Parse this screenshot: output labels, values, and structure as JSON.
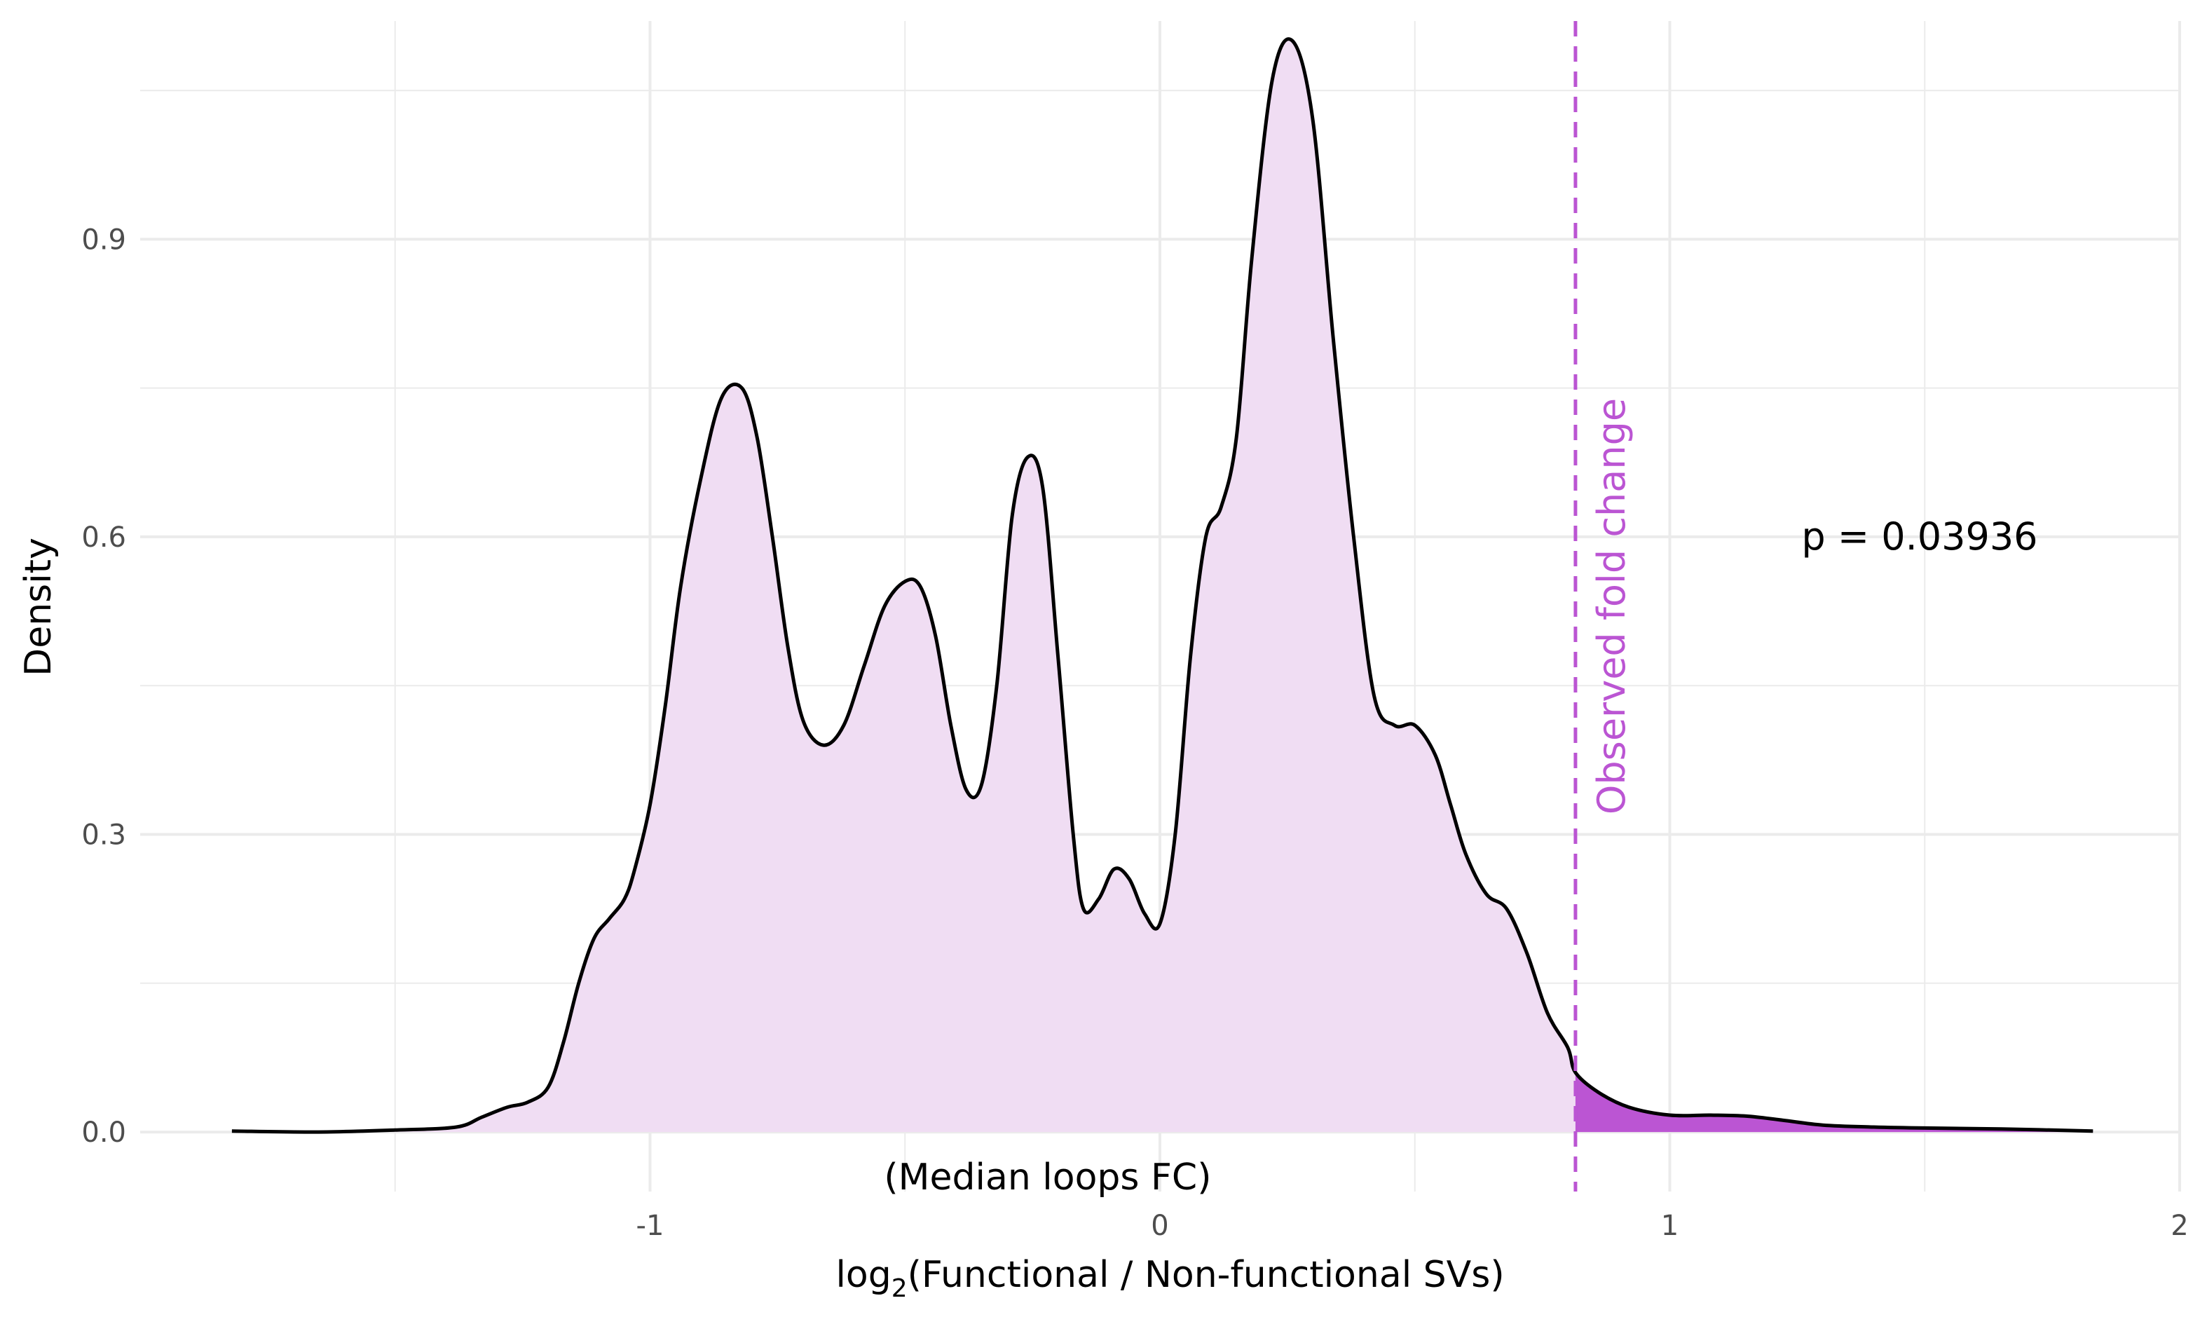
{
  "chart_data": {
    "type": "area",
    "xlabel": "log2(Functional / Non-functional SVs)",
    "xlabel_base": "log",
    "xlabel_sub": "2",
    "xlabel_rest": "(Functional / Non-functional SVs)",
    "ylabel": "Density",
    "subtitle_bottom": "(Median loops FC)",
    "x_ticks": [
      -1,
      0,
      1,
      2
    ],
    "x_tick_labels": [
      "-1",
      "0",
      "1",
      "2"
    ],
    "y_ticks": [
      0.0,
      0.3,
      0.6,
      0.9
    ],
    "y_tick_labels": [
      "0.0",
      "0.3",
      "0.6",
      "0.9"
    ],
    "xlim": [
      -2.0,
      2.0
    ],
    "ylim": [
      -0.06,
      1.12
    ],
    "grid": true,
    "observed_fold_change": 0.815,
    "observed_label": "Observed fold change",
    "p_value_label": "p = 0.03936",
    "colors": {
      "fill": "#f0ddf3",
      "tail_fill": "#bb55d3",
      "line": "#000000",
      "observed": "#bb55d3",
      "grid": "#ebebeb",
      "tick_text": "#4d4d4d"
    },
    "series": [
      {
        "x": [
          -1.82,
          -1.65,
          -1.5,
          -1.38,
          -1.33,
          -1.28,
          -1.24,
          -1.2,
          -1.17,
          -1.14,
          -1.11,
          -1.08,
          -1.05,
          -1.03,
          -1.0,
          -0.97,
          -0.94,
          -0.9,
          -0.86,
          -0.82,
          -0.79,
          -0.76,
          -0.73,
          -0.7,
          -0.66,
          -0.62,
          -0.58,
          -0.54,
          -0.5,
          -0.47,
          -0.44,
          -0.41,
          -0.38,
          -0.35,
          -0.32,
          -0.29,
          -0.26,
          -0.23,
          -0.2,
          -0.17,
          -0.15,
          -0.12,
          -0.09,
          -0.06,
          -0.03,
          0.0,
          0.03,
          0.06,
          0.09,
          0.12,
          0.15,
          0.18,
          0.22,
          0.26,
          0.3,
          0.34,
          0.38,
          0.42,
          0.46,
          0.5,
          0.54,
          0.57,
          0.6,
          0.64,
          0.68,
          0.72,
          0.76,
          0.8,
          0.815,
          0.86,
          0.92,
          1.0,
          1.08,
          1.15,
          1.22,
          1.3,
          1.4,
          1.5,
          1.65,
          1.83
        ],
        "y": [
          0.001,
          0.0,
          0.002,
          0.005,
          0.015,
          0.025,
          0.03,
          0.045,
          0.09,
          0.15,
          0.195,
          0.215,
          0.235,
          0.265,
          0.33,
          0.43,
          0.55,
          0.66,
          0.74,
          0.75,
          0.7,
          0.6,
          0.49,
          0.415,
          0.39,
          0.41,
          0.47,
          0.53,
          0.555,
          0.55,
          0.5,
          0.41,
          0.345,
          0.35,
          0.45,
          0.62,
          0.68,
          0.65,
          0.48,
          0.3,
          0.225,
          0.235,
          0.265,
          0.255,
          0.22,
          0.21,
          0.3,
          0.48,
          0.6,
          0.63,
          0.7,
          0.88,
          1.06,
          1.1,
          1.02,
          0.8,
          0.6,
          0.44,
          0.41,
          0.41,
          0.38,
          0.33,
          0.28,
          0.24,
          0.225,
          0.18,
          0.12,
          0.085,
          0.06,
          0.04,
          0.025,
          0.017,
          0.017,
          0.016,
          0.012,
          0.007,
          0.005,
          0.004,
          0.003,
          0.001
        ]
      }
    ]
  }
}
